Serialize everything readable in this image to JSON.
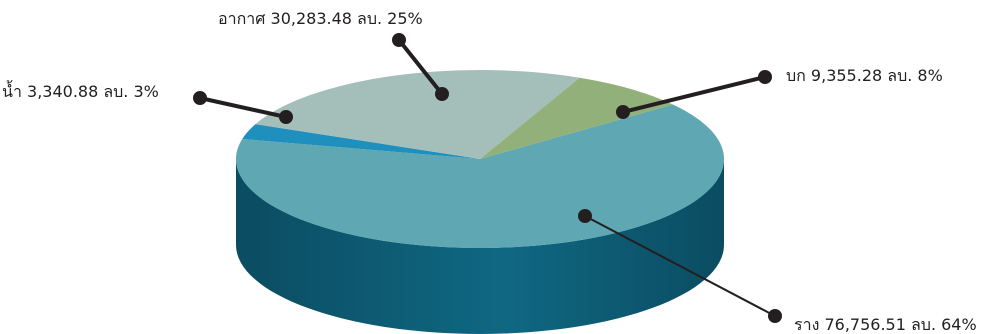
{
  "chart_data": {
    "type": "pie",
    "style": "3d",
    "title": "",
    "slices": [
      {
        "key": "rail",
        "label": "ราง 76,756.51 ลบ. 64%",
        "value": 76756.51,
        "percent": 64,
        "color": "#5fa7b2"
      },
      {
        "key": "water",
        "label": "น้ำ 3,340.88  ลบ. 3%",
        "value": 3340.88,
        "percent": 3,
        "color": "#1f8fbd"
      },
      {
        "key": "air",
        "label": "อากาศ  30,283.48 ลบ. 25%",
        "value": 30283.48,
        "percent": 25,
        "color": "#a4bfb9"
      },
      {
        "key": "land",
        "label": "บก 9,355.28 ลบ. 8%",
        "value": 9355.28,
        "percent": 8,
        "color": "#92b079"
      }
    ],
    "side_color": "#0f6883",
    "side_color_dark": "#0b4c61",
    "leader_color": "#231f20"
  }
}
